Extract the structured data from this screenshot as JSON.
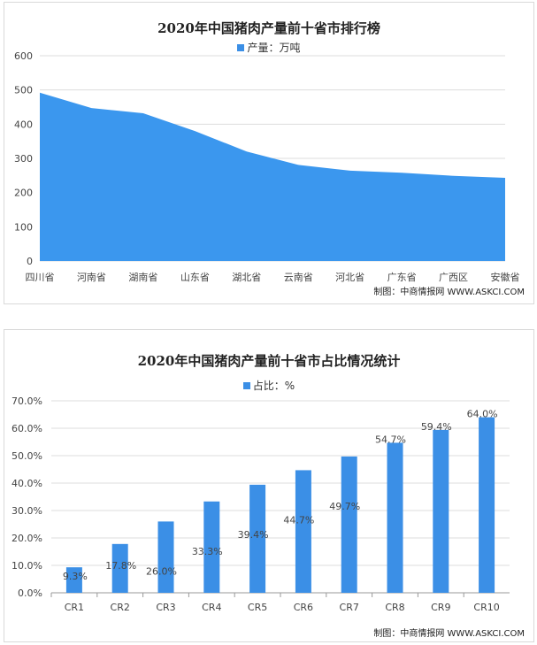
{
  "chart_data": [
    {
      "type": "area",
      "title": "2020年中国猪肉产量前十省市排行榜",
      "legend": "产量：万吨",
      "legend_position": "top",
      "categories": [
        "四川省",
        "河南省",
        "湖南省",
        "山东省",
        "湖北省",
        "云南省",
        "河北省",
        "广东省",
        "广西区",
        "安徽省"
      ],
      "series": [
        {
          "name": "产量：万吨",
          "values": [
            492,
            447,
            432,
            380,
            320,
            281,
            264,
            258,
            249,
            243
          ]
        }
      ],
      "ylim": [
        0,
        600
      ],
      "yticks": [
        0,
        100,
        200,
        300,
        400,
        500,
        600
      ],
      "grid": true,
      "color": "#3b97ee",
      "credit": "制图：中商情报网 WWW.ASKCI.COM"
    },
    {
      "type": "bar",
      "title": "2020年中国猪肉产量前十省市占比情况统计",
      "legend": "占比：%",
      "legend_position": "top",
      "categories": [
        "CR1",
        "CR2",
        "CR3",
        "CR4",
        "CR5",
        "CR6",
        "CR7",
        "CR8",
        "CR9",
        "CR10"
      ],
      "series": [
        {
          "name": "占比：%",
          "values": [
            9.3,
            17.8,
            26.0,
            33.3,
            39.4,
            44.7,
            49.7,
            54.7,
            59.4,
            64.0
          ]
        }
      ],
      "data_labels": [
        "9.3%",
        "17.8%",
        "26.0%",
        "33.3%",
        "39.4%",
        "44.7%",
        "49.7%",
        "54.7%",
        "59.4%",
        "64.0%"
      ],
      "ylim": [
        0,
        70
      ],
      "yticks": [
        "0.0%",
        "10.0%",
        "20.0%",
        "30.0%",
        "40.0%",
        "50.0%",
        "60.0%",
        "70.0%"
      ],
      "grid": true,
      "color": "#3b8fe6",
      "credit": "制图：中商情报网 WWW.ASKCI.COM"
    }
  ]
}
